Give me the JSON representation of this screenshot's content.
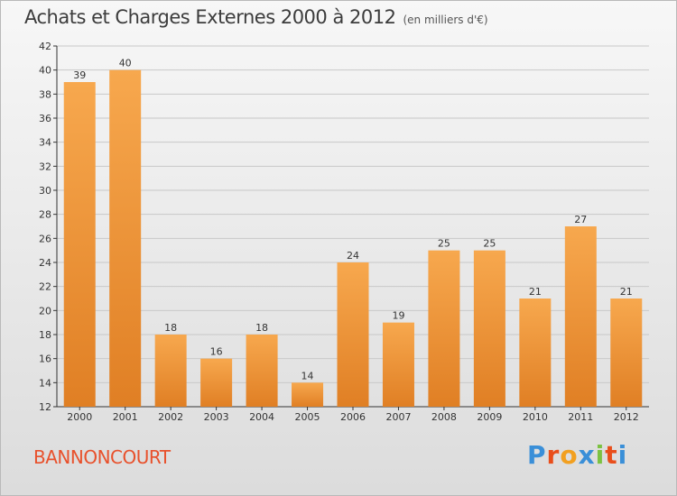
{
  "header": {
    "title": "Achats et Charges Externes 2000 à 2012",
    "subtitle": "(en milliers d'€)"
  },
  "footer": {
    "commune": "BANNONCOURT",
    "brand": "Proxiti",
    "brand_colors": [
      "#3a8fd8",
      "#e94e1b",
      "#f2a020",
      "#3a8fd8",
      "#7cc242",
      "#e94e1b",
      "#3a8fd8"
    ]
  },
  "colors": {
    "bar_top": "#f7a84e",
    "bar_bottom": "#e07f24",
    "grid": "#c8c8c8",
    "axis": "#333333"
  },
  "chart_data": {
    "type": "bar",
    "categories": [
      "2000",
      "2001",
      "2002",
      "2003",
      "2004",
      "2005",
      "2006",
      "2007",
      "2008",
      "2009",
      "2010",
      "2011",
      "2012"
    ],
    "values": [
      39,
      40,
      18,
      16,
      18,
      14,
      24,
      19,
      25,
      25,
      21,
      27,
      21
    ],
    "ylim": [
      12,
      42
    ],
    "yticks": [
      12,
      14,
      16,
      18,
      20,
      22,
      24,
      26,
      28,
      30,
      32,
      34,
      36,
      38,
      40,
      42
    ],
    "grid": true,
    "data_labels": true
  }
}
